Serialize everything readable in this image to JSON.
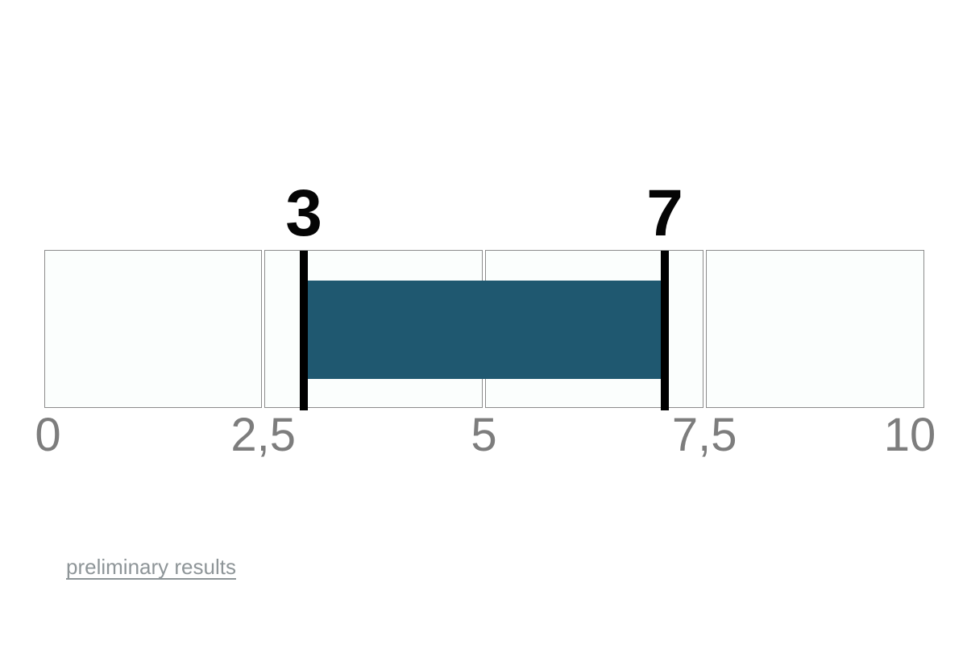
{
  "chart_data": {
    "type": "bar",
    "subtype": "range-gauge",
    "orientation": "horizontal",
    "title": "",
    "axis": {
      "min": 0,
      "max": 10,
      "ticks": [
        {
          "value": 0,
          "label": "0"
        },
        {
          "value": 2.5,
          "label": "2,5"
        },
        {
          "value": 5,
          "label": "5"
        },
        {
          "value": 7.5,
          "label": "7,5"
        },
        {
          "value": 10,
          "label": "10"
        }
      ]
    },
    "segments": [
      {
        "start": 0,
        "end": 2.5
      },
      {
        "start": 2.5,
        "end": 5
      },
      {
        "start": 5,
        "end": 7.5
      },
      {
        "start": 7.5,
        "end": 10
      }
    ],
    "range": {
      "start": 3,
      "end": 7,
      "start_label": "3",
      "end_label": "7"
    },
    "colors": {
      "bar": "#1f5870",
      "segment_fill": "#fbfefd",
      "segment_border": "#8c8c8c",
      "marker": "#000000",
      "axis_label": "#7d7d7d",
      "range_label": "#050505"
    },
    "legend": null,
    "grid": false
  },
  "footer": {
    "link_label": "preliminary results",
    "link_color": "#8e9598"
  }
}
